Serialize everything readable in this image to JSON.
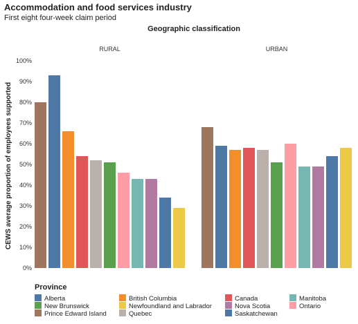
{
  "title": "Accommodation and food services industry",
  "subtitle": "First eight four-week claim period",
  "legend_title": "Province",
  "chart_data": {
    "type": "bar",
    "column_header": "Geographic classification",
    "panels": [
      "RURAL",
      "URBAN"
    ],
    "ylabel": "CEWS average proportion of employees supported",
    "ylim": [
      0,
      100
    ],
    "yticks": [
      "0%",
      "10%",
      "20%",
      "30%",
      "40%",
      "50%",
      "60%",
      "70%",
      "80%",
      "90%",
      "100%"
    ],
    "grid": false,
    "series": [
      {
        "name": "Prince Edward Island",
        "color": "#9e7660",
        "values": [
          80,
          68
        ]
      },
      {
        "name": "Alberta",
        "color": "#4e79a7",
        "values": [
          93,
          59
        ]
      },
      {
        "name": "British Columbia",
        "color": "#f28e2b",
        "values": [
          66,
          57
        ]
      },
      {
        "name": "Canada",
        "color": "#e15759",
        "values": [
          54,
          58
        ]
      },
      {
        "name": "Quebec",
        "color": "#bab0ac",
        "values": [
          52,
          57
        ]
      },
      {
        "name": "New Brunswick",
        "color": "#59a14f",
        "values": [
          51,
          51
        ]
      },
      {
        "name": "Ontario",
        "color": "#ff9da7",
        "values": [
          46,
          60
        ]
      },
      {
        "name": "Manitoba",
        "color": "#76b7b2",
        "values": [
          43,
          49
        ]
      },
      {
        "name": "Nova Scotia",
        "color": "#b07aa1",
        "values": [
          43,
          49
        ]
      },
      {
        "name": "Saskatchewan",
        "color": "#4e79a7",
        "values": [
          34,
          54
        ]
      },
      {
        "name": "Newfoundland and Labrador",
        "color": "#edc948",
        "values": [
          29,
          58
        ]
      }
    ],
    "legend": [
      {
        "name": "Alberta",
        "color": "#4e79a7"
      },
      {
        "name": "British Columbia",
        "color": "#f28e2b"
      },
      {
        "name": "Canada",
        "color": "#e15759"
      },
      {
        "name": "Manitoba",
        "color": "#76b7b2"
      },
      {
        "name": "New Brunswick",
        "color": "#59a14f"
      },
      {
        "name": "Newfoundland and Labrador",
        "color": "#edc948"
      },
      {
        "name": "Nova Scotia",
        "color": "#b07aa1"
      },
      {
        "name": "Ontario",
        "color": "#ff9da7"
      },
      {
        "name": "Prince Edward Island",
        "color": "#9e7660"
      },
      {
        "name": "Quebec",
        "color": "#bab0ac"
      },
      {
        "name": "Saskatchewan",
        "color": "#4e79a7"
      }
    ]
  }
}
